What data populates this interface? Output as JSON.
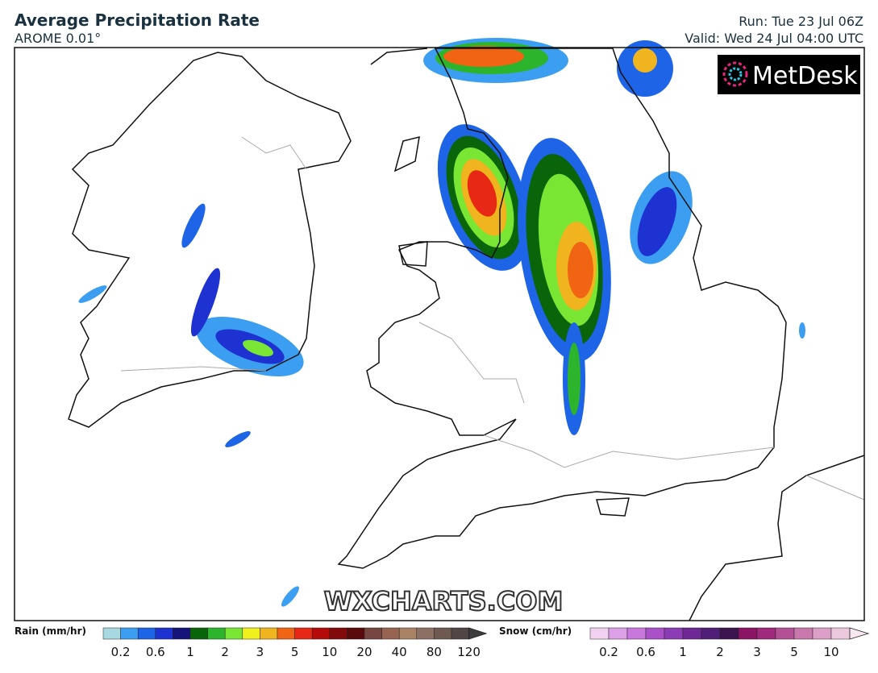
{
  "header": {
    "title": "Average Precipitation Rate",
    "model": "AROME 0.01°",
    "run": "Run: Tue 23 Jul 06Z",
    "valid": "Valid: Wed 24 Jul 04:00 UTC"
  },
  "logo": "MetDesk",
  "watermark": "WXCHARTS.COM",
  "legend": {
    "rain": {
      "label": "Rain (mm/hr)",
      "ticks": [
        0.2,
        0.6,
        1,
        2,
        3,
        5,
        10,
        20,
        40,
        80,
        120
      ],
      "colors": [
        "#a8d8e0",
        "#3c9ef0",
        "#1e64e6",
        "#1e32d2",
        "#14147a",
        "#0a640a",
        "#2db42d",
        "#78e632",
        "#f0f01e",
        "#f0b41e",
        "#f06414",
        "#e62814",
        "#b40a0a",
        "#820a0a",
        "#5a0a0a",
        "#784640",
        "#966450",
        "#aa8264",
        "#8c7064",
        "#6e5a50",
        "#504646",
        "#3c3c3c"
      ]
    },
    "snow": {
      "label": "Snow (cm/hr)",
      "ticks": [
        0.2,
        0.6,
        1,
        2,
        3,
        5,
        10
      ],
      "colors": [
        "#f0d2f0",
        "#dca0e6",
        "#c878dc",
        "#aa50c8",
        "#8c3cb4",
        "#6e2896",
        "#501e78",
        "#3c1450",
        "#8c1464",
        "#a0287d",
        "#b45096",
        "#c878aa",
        "#dca0c8",
        "#ebc8dc",
        "#f8e6f0"
      ]
    }
  }
}
